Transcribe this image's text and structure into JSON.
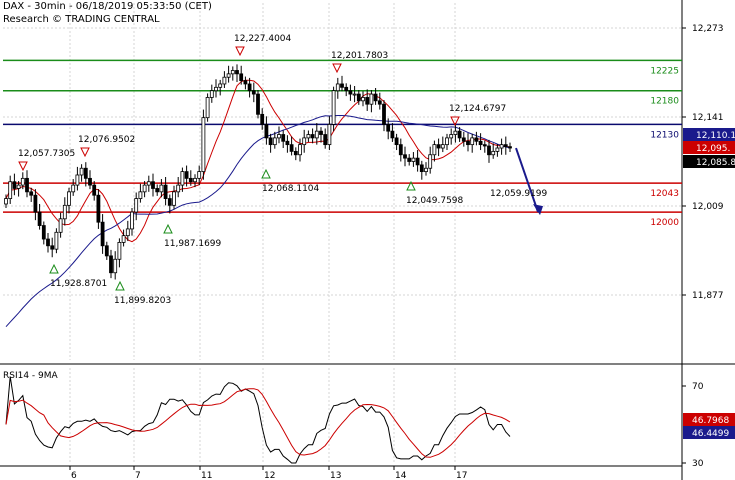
{
  "header": {
    "title": "DAX - 30min - 06/18/2019 05:33:50 (CET)",
    "source": "Research © TRADING CENTRAL"
  },
  "chart_data": [
    {
      "type": "candlestick",
      "title": "DAX - 30min - 06/18/2019 05:33:50 (CET)",
      "y_ticks": [
        "12,273",
        "12,141",
        "12,009",
        "11,877"
      ],
      "x_ticks": [
        "6",
        "7",
        "11",
        "12",
        "13",
        "14",
        "17"
      ],
      "ylim": [
        11800,
        12310
      ],
      "grid": true,
      "levels": [
        {
          "value": 12225,
          "label": "12225",
          "color": "#1a8c1a"
        },
        {
          "value": 12180,
          "label": "12180",
          "color": "#1a8c1a"
        },
        {
          "value": 12130,
          "label": "12130",
          "color": "#0a0a6e"
        },
        {
          "value": 12043,
          "label": "12043",
          "color": "#cc0000"
        },
        {
          "value": 12000,
          "label": "12000",
          "color": "#cc0000"
        }
      ],
      "annotations": [
        {
          "label": "12,057.7305",
          "kind": "high"
        },
        {
          "label": "12,076.9502",
          "kind": "high"
        },
        {
          "label": "11,928.8701",
          "kind": "low"
        },
        {
          "label": "11,899.8203",
          "kind": "low"
        },
        {
          "label": "11,987.1699",
          "kind": "low"
        },
        {
          "label": "12,227.4004",
          "kind": "high"
        },
        {
          "label": "12,068.1104",
          "kind": "low"
        },
        {
          "label": "12,201.7803",
          "kind": "high"
        },
        {
          "label": "12,049.7598",
          "kind": "low"
        },
        {
          "label": "12,124.6797",
          "kind": "high"
        },
        {
          "label": "12,059.9199",
          "kind": "target"
        }
      ],
      "price_tags": [
        {
          "label": "12,110.1",
          "bg": "#1a1a8c"
        },
        {
          "label": "12,095.",
          "bg": "#cc0000"
        },
        {
          "label": "12,085.8",
          "bg": "#000000"
        }
      ],
      "closes": [
        12020,
        12045,
        12035,
        12040,
        12050,
        12030,
        12025,
        12000,
        11980,
        11960,
        11950,
        11945,
        11970,
        11990,
        12010,
        12030,
        12040,
        12055,
        12065,
        12050,
        12040,
        12025,
        11985,
        11950,
        11935,
        11910,
        11930,
        11955,
        11965,
        11975,
        12000,
        12020,
        12030,
        12040,
        12045,
        12035,
        12030,
        12040,
        12020,
        12010,
        12030,
        12040,
        12060,
        12050,
        12045,
        12050,
        12060,
        12140,
        12170,
        12180,
        12185,
        12190,
        12200,
        12205,
        12210,
        12205,
        12195,
        12190,
        12180,
        12175,
        12145,
        12130,
        12110,
        12100,
        12110,
        12115,
        12105,
        12100,
        12090,
        12085,
        12100,
        12110,
        12115,
        12110,
        12120,
        12115,
        12100,
        12130,
        12180,
        12190,
        12185,
        12180,
        12175,
        12175,
        12165,
        12170,
        12160,
        12175,
        12165,
        12160,
        12130,
        12120,
        12110,
        12100,
        12085,
        12080,
        12075,
        12080,
        12070,
        12060,
        12065,
        12085,
        12100,
        12095,
        12100,
        12110,
        12115,
        12120,
        12110,
        12105,
        12100,
        12110,
        12105,
        12100,
        12098,
        12085,
        12090,
        12095,
        12100,
        12097,
        12095
      ],
      "projection": {
        "to": 12000,
        "label": "12,059.9199"
      }
    },
    {
      "type": "line",
      "title": "RSI14 - 9MA",
      "y_ticks": [
        "70",
        "30"
      ],
      "ylim": [
        25,
        80
      ],
      "series": [
        {
          "name": "RSI14",
          "color": "#000000"
        },
        {
          "name": "9MA",
          "color": "#cc0000"
        }
      ],
      "value_tags": [
        {
          "label": "46.7968",
          "bg": "#cc0000"
        },
        {
          "label": "46.4499",
          "bg": "#1a1a8c"
        }
      ]
    }
  ]
}
